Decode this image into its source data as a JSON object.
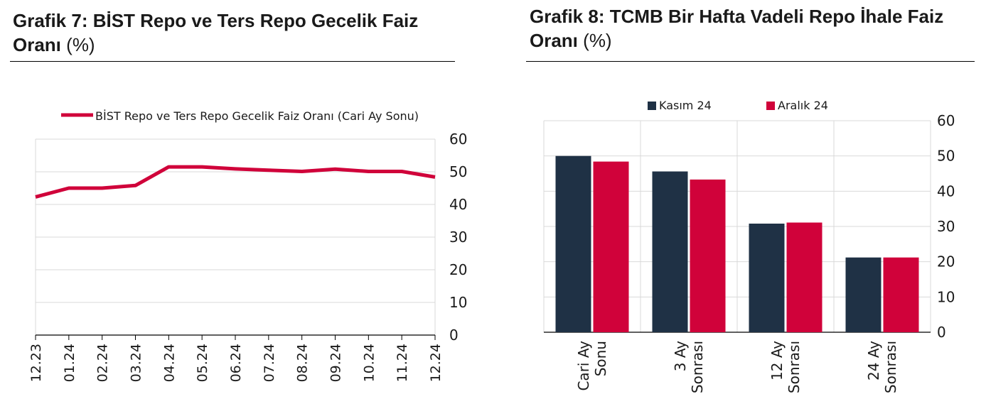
{
  "left": {
    "title_bold": "Grafik 7:  BİST Repo ve Ters Repo Gecelik Faiz Oranı",
    "title_unit": "(%)"
  },
  "right": {
    "title_bold": "Grafik 8: TCMB Bir Hafta Vadeli Repo İhale Faiz Oranı",
    "title_unit": "(%)"
  },
  "colors": {
    "red": "#d0023a",
    "navy": "#1f3145",
    "grid": "#d9d9d9",
    "axis": "#000000"
  },
  "chart_data": [
    {
      "type": "line",
      "title": "",
      "xlabel": "",
      "ylabel": "",
      "ylim": [
        0,
        60
      ],
      "yticks": [
        0,
        10,
        20,
        30,
        40,
        50,
        60
      ],
      "y_axis_position": "right",
      "grid": true,
      "legend_position": "top",
      "x": [
        "12.23",
        "01.24",
        "02.24",
        "03.24",
        "04.24",
        "05.24",
        "06.24",
        "07.24",
        "08.24",
        "09.24",
        "10.24",
        "11.24",
        "12.24"
      ],
      "series": [
        {
          "name": "BİST Repo ve Ters Repo Gecelik Faiz Oranı (Cari Ay Sonu)",
          "values": [
            42.3,
            45.0,
            45.0,
            45.8,
            51.5,
            51.5,
            50.9,
            50.5,
            50.1,
            50.8,
            50.1,
            50.1,
            48.4
          ]
        }
      ]
    },
    {
      "type": "bar",
      "title": "",
      "xlabel": "",
      "ylabel": "",
      "ylim": [
        0,
        60
      ],
      "yticks": [
        0,
        10,
        20,
        30,
        40,
        50,
        60
      ],
      "y_axis_position": "right",
      "grid": true,
      "legend_position": "top",
      "categories": [
        [
          "Cari Ay",
          "Sonu"
        ],
        [
          "3 Ay",
          "Sonrası"
        ],
        [
          "12 Ay",
          "Sonrası"
        ],
        [
          "24 Ay",
          "Sonrası"
        ]
      ],
      "series": [
        {
          "name": "Kasım 24",
          "values": [
            50.0,
            45.6,
            30.8,
            21.2
          ]
        },
        {
          "name": "Aralık 24",
          "values": [
            48.4,
            43.3,
            31.1,
            21.2
          ]
        }
      ]
    }
  ]
}
